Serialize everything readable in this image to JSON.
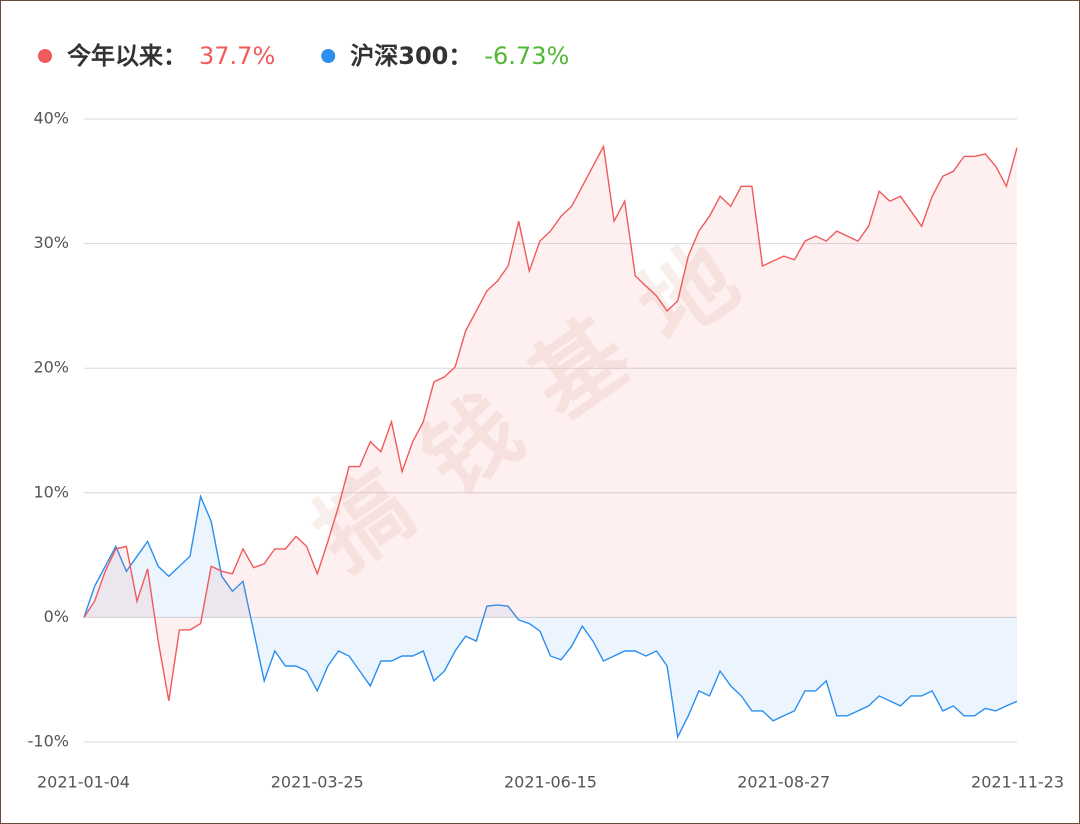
{
  "chart_data": {
    "type": "line",
    "watermark": "搞钱基地",
    "categories": [
      "2021-01-04",
      null,
      null,
      null,
      null,
      null,
      null,
      null,
      null,
      null,
      null,
      null,
      null,
      null,
      null,
      null,
      null,
      null,
      null,
      null,
      null,
      null,
      "2021-03-25",
      null,
      null,
      null,
      null,
      null,
      null,
      null,
      null,
      null,
      null,
      null,
      null,
      null,
      null,
      null,
      null,
      null,
      null,
      null,
      null,
      null,
      "2021-06-15",
      null,
      null,
      null,
      null,
      null,
      null,
      null,
      null,
      null,
      null,
      null,
      null,
      null,
      null,
      null,
      null,
      null,
      null,
      null,
      null,
      null,
      "2021-08-27",
      null,
      null,
      null,
      null,
      null,
      null,
      null,
      null,
      null,
      null,
      null,
      null,
      null,
      null,
      null,
      null,
      null,
      null,
      null,
      null,
      null,
      "2021-11-23"
    ],
    "ylim": [
      -10,
      40
    ],
    "yticks": [
      {
        "value": -10,
        "label": "-10%"
      },
      {
        "value": 0,
        "label": "0%"
      },
      {
        "value": 10,
        "label": "10%"
      },
      {
        "value": 20,
        "label": "20%"
      },
      {
        "value": 30,
        "label": "30%"
      },
      {
        "value": 40,
        "label": "40%"
      }
    ],
    "grid": true,
    "series": [
      {
        "name": "今年以来：",
        "summary": "37.7%",
        "color": "#f05a5a",
        "fill": "rgba(240,90,90,0.09)",
        "summary_color": "#f05a5a",
        "values": [
          0,
          1.3,
          3.7,
          5.5,
          5.7,
          1.3,
          3.9,
          -1.9,
          -6.7,
          -1,
          -1,
          -0.5,
          4.1,
          3.7,
          3.5,
          5.5,
          4,
          4.3,
          5.5,
          5.5,
          6.5,
          5.7,
          3.5,
          6.1,
          8.9,
          12.1,
          12.1,
          14.1,
          13.3,
          15.7,
          11.7,
          14.1,
          15.7,
          18.9,
          19.3,
          20.1,
          23,
          24.6,
          26.2,
          27,
          28.2,
          31.8,
          27.8,
          30.2,
          31,
          32.2,
          33,
          34.6,
          36.2,
          37.8,
          31.8,
          33.4,
          27.4,
          26.6,
          25.8,
          24.6,
          25.4,
          29,
          31,
          32.2,
          33.8,
          33,
          34.6,
          34.6,
          28.2,
          28.6,
          29,
          28.7,
          30.2,
          30.6,
          30.2,
          31,
          30.6,
          30.2,
          31.4,
          34.2,
          33.4,
          33.8,
          32.6,
          31.4,
          33.8,
          35.4,
          35.8,
          37,
          37,
          37.2,
          36.2,
          34.6,
          37.7
        ]
      },
      {
        "name": "沪深300：",
        "summary": "-6.73%",
        "color": "#2b8ff0",
        "fill": "rgba(43,143,240,0.09)",
        "summary_color": "#52b833",
        "values": [
          0,
          2.5,
          4.1,
          5.7,
          3.7,
          4.9,
          6.1,
          4.1,
          3.3,
          4.1,
          4.9,
          9.7,
          7.7,
          3.3,
          2.1,
          2.9,
          -1.1,
          -5.1,
          -2.7,
          -3.9,
          -3.9,
          -4.3,
          -5.9,
          -3.9,
          -2.7,
          -3.1,
          -4.3,
          -5.5,
          -3.5,
          -3.5,
          -3.1,
          -3.1,
          -2.7,
          -5.1,
          -4.3,
          -2.7,
          -1.5,
          -1.9,
          0.9,
          1,
          0.9,
          -0.2,
          -0.5,
          -1.1,
          -3.1,
          -3.4,
          -2.3,
          -0.7,
          -1.9,
          -3.5,
          -3.1,
          -2.7,
          -2.7,
          -3.1,
          -2.7,
          -3.9,
          -9.6,
          -7.9,
          -5.9,
          -6.3,
          -4.3,
          -5.5,
          -6.3,
          -7.5,
          -7.5,
          -8.3,
          -7.9,
          -7.5,
          -5.9,
          -5.9,
          -5.1,
          -7.9,
          -7.9,
          -7.5,
          -7.1,
          -6.3,
          -6.7,
          -7.1,
          -6.3,
          -6.3,
          -5.9,
          -7.5,
          -7.1,
          -7.9,
          -7.9,
          -7.3,
          -7.5,
          -7.1,
          -6.73
        ]
      }
    ]
  }
}
